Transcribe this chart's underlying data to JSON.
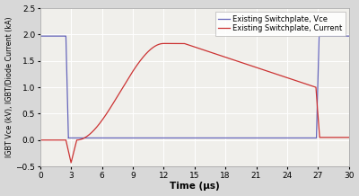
{
  "xlabel": "Time (μs)",
  "ylabel": "IGBT Vce (kV), IGBT/Diode Current (kA)",
  "xlim": [
    0,
    30
  ],
  "ylim": [
    -0.5,
    2.5
  ],
  "xticks": [
    0,
    3,
    6,
    9,
    12,
    15,
    18,
    21,
    24,
    27,
    30
  ],
  "yticks": [
    -0.5,
    0.0,
    0.5,
    1.0,
    1.5,
    2.0,
    2.5
  ],
  "legend_vce": "Existing Switchplate, Vce",
  "legend_cur": "Existing Switchplate, Current",
  "blue_color": "#6666bb",
  "red_color": "#cc3333",
  "fig_bg": "#d8d8d8",
  "ax_bg": "#f0efeb"
}
